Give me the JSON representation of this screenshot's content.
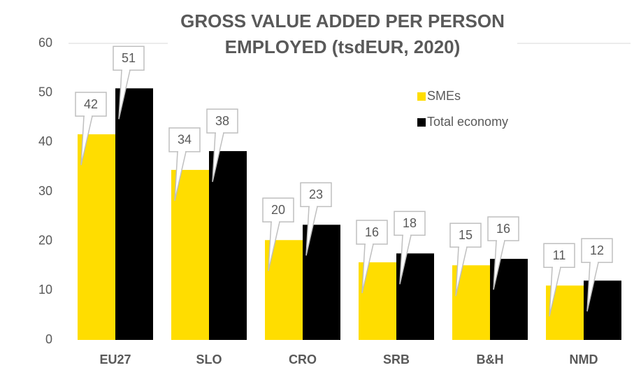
{
  "chart_data": {
    "type": "bar",
    "title": "GROSS VALUE ADDED PER PERSON EMPLOYED (tsdEUR, 2020)",
    "categories": [
      "EU27",
      "SLO",
      "CRO",
      "SRB",
      "B&H",
      "NMD"
    ],
    "series": [
      {
        "name": "SMEs",
        "color": "#ffdd00",
        "values": [
          41.6,
          34.4,
          20.2,
          15.7,
          15.1,
          11.0
        ],
        "value_labels": [
          "42",
          "34",
          "20",
          "16",
          "15",
          "11"
        ]
      },
      {
        "name": "Total economy",
        "color": "#000000",
        "values": [
          50.9,
          38.2,
          23.3,
          17.5,
          16.4,
          12.0
        ],
        "value_labels": [
          "51",
          "38",
          "23",
          "18",
          "16",
          "12"
        ]
      }
    ],
    "ylim": [
      0,
      60
    ],
    "yticks": [
      0,
      10,
      20,
      30,
      40,
      50,
      60
    ],
    "grid": false,
    "legend": "upper right"
  }
}
